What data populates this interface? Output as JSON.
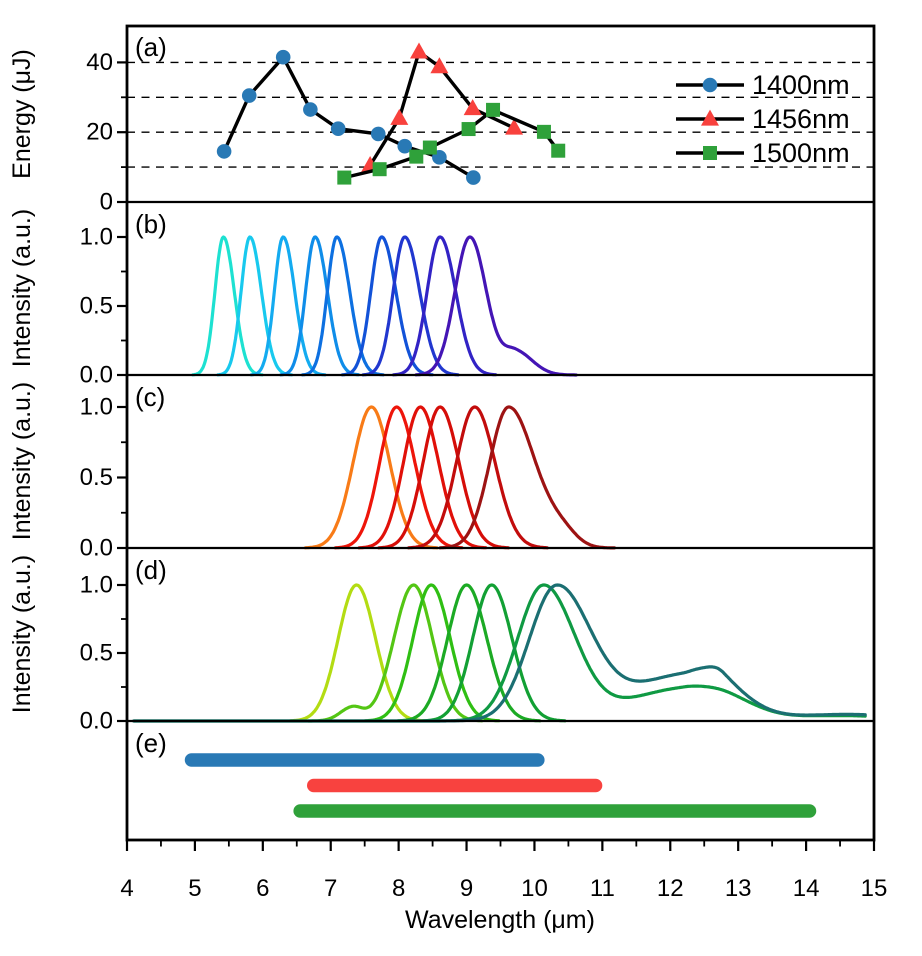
{
  "figure": {
    "xlabel": "Wavelength (μm)",
    "x_ticks": [
      "4",
      "5",
      "6",
      "7",
      "8",
      "9",
      "10",
      "11",
      "12",
      "13",
      "14",
      "15"
    ],
    "x_min": 4,
    "x_max": 15
  },
  "legend": {
    "items": [
      {
        "label": "1400nm",
        "marker": "circle",
        "color": "#2979b5"
      },
      {
        "label": "1456nm",
        "marker": "triangle",
        "color": "#f8413d"
      },
      {
        "label": "1500nm",
        "marker": "square",
        "color": "#2fa13a"
      }
    ]
  },
  "chart_data": [
    {
      "id": "a",
      "panel_label": "(a)",
      "type": "scatter",
      "ylabel": "Energy (μJ)",
      "ylim": [
        0,
        50.4
      ],
      "y_ticks": [
        {
          "v": 0,
          "t": "0"
        },
        {
          "v": 20,
          "t": "20"
        },
        {
          "v": 40,
          "t": "40"
        }
      ],
      "y_minor": [
        10,
        30
      ],
      "gridlines": [
        10,
        20,
        30,
        40
      ],
      "series": [
        {
          "name": "1400nm",
          "marker": "circle",
          "color": "#2979b5",
          "x": [
            5.43,
            5.8,
            6.3,
            6.7,
            7.11,
            7.7,
            8.09,
            8.6,
            9.1
          ],
          "y": [
            14.5,
            30.5,
            41.5,
            26.5,
            21.0,
            19.5,
            16.0,
            12.8,
            7.0
          ]
        },
        {
          "name": "1456nm",
          "marker": "triangle",
          "color": "#f8413d",
          "x": [
            7.58,
            8.01,
            8.3,
            8.6,
            9.09,
            9.7
          ],
          "y": [
            10.5,
            24.0,
            43.0,
            38.8,
            26.8,
            21.2
          ]
        },
        {
          "name": "1500nm",
          "marker": "square",
          "color": "#2fa13a",
          "x": [
            7.2,
            7.72,
            8.26,
            8.46,
            9.03,
            9.39,
            10.14,
            10.35
          ],
          "y": [
            7.0,
            9.4,
            13.0,
            15.6,
            20.9,
            26.4,
            20.1,
            14.7
          ]
        }
      ]
    },
    {
      "id": "b",
      "panel_label": "(b)",
      "type": "curves",
      "ylabel": "Intensity (a.u.)",
      "ylim": [
        0,
        1.25
      ],
      "y_ticks": [
        {
          "v": 0,
          "t": "0.0"
        },
        {
          "v": 0.5,
          "t": "0.5"
        },
        {
          "v": 1,
          "t": "1.0"
        }
      ],
      "y_minor": [
        0.25,
        0.75
      ],
      "curves": [
        {
          "color": "#1de1d1",
          "peak": 5.42,
          "components": [
            {
              "c": 5.42,
              "sl": 0.125,
              "sr": 0.16,
              "a": 1
            }
          ]
        },
        {
          "color": "#18c9ee",
          "peak": 5.81,
          "components": [
            {
              "c": 5.81,
              "sl": 0.13,
              "sr": 0.17,
              "a": 1
            }
          ]
        },
        {
          "color": "#13abf0",
          "peak": 6.3,
          "components": [
            {
              "c": 6.3,
              "sl": 0.13,
              "sr": 0.17,
              "a": 1
            }
          ]
        },
        {
          "color": "#0f8de9",
          "peak": 6.77,
          "components": [
            {
              "c": 6.77,
              "sl": 0.14,
              "sr": 0.18,
              "a": 1
            }
          ]
        },
        {
          "color": "#0d70e1",
          "peak": 7.09,
          "components": [
            {
              "c": 7.09,
              "sl": 0.14,
              "sr": 0.19,
              "a": 1
            }
          ]
        },
        {
          "color": "#1252d8",
          "peak": 7.75,
          "components": [
            {
              "c": 7.75,
              "sl": 0.16,
              "sr": 0.21,
              "a": 1
            }
          ]
        },
        {
          "color": "#2137cf",
          "peak": 8.09,
          "components": [
            {
              "c": 8.09,
              "sl": 0.17,
              "sr": 0.22,
              "a": 1
            }
          ]
        },
        {
          "color": "#3223c5",
          "peak": 8.61,
          "components": [
            {
              "c": 8.61,
              "sl": 0.19,
              "sr": 0.23,
              "a": 1
            }
          ]
        },
        {
          "color": "#4415b5",
          "peak": 9.05,
          "components": [
            {
              "c": 9.05,
              "sl": 0.22,
              "sr": 0.24,
              "a": 1
            },
            {
              "c": 9.72,
              "sl": 0.18,
              "sr": 0.25,
              "a": 0.17
            }
          ]
        }
      ]
    },
    {
      "id": "c",
      "panel_label": "(c)",
      "type": "curves",
      "ylabel": "Intensity (a.u.)",
      "ylim": [
        0,
        1.22
      ],
      "y_ticks": [
        {
          "v": 0,
          "t": "0.0"
        },
        {
          "v": 0.5,
          "t": "0.5"
        },
        {
          "v": 1,
          "t": "1.0"
        }
      ],
      "y_minor": [
        0.25,
        0.75
      ],
      "curves": [
        {
          "color": "#f87b17",
          "peak": 7.6,
          "components": [
            {
              "c": 7.6,
              "sl": 0.27,
              "sr": 0.27,
              "a": 1
            }
          ]
        },
        {
          "color": "#ee150a",
          "peak": 7.97,
          "components": [
            {
              "c": 7.97,
              "sl": 0.25,
              "sr": 0.27,
              "a": 1
            }
          ]
        },
        {
          "color": "#e11009",
          "peak": 8.32,
          "components": [
            {
              "c": 8.32,
              "sl": 0.25,
              "sr": 0.27,
              "a": 1
            }
          ]
        },
        {
          "color": "#d50d08",
          "peak": 8.61,
          "components": [
            {
              "c": 8.61,
              "sl": 0.25,
              "sr": 0.28,
              "a": 1
            }
          ]
        },
        {
          "color": "#c20c0c",
          "peak": 9.12,
          "components": [
            {
              "c": 9.12,
              "sl": 0.27,
              "sr": 0.3,
              "a": 1
            }
          ]
        },
        {
          "color": "#9d1313",
          "peak": 9.62,
          "components": [
            {
              "c": 9.62,
              "sl": 0.28,
              "sr": 0.38,
              "a": 1
            },
            {
              "c": 10.4,
              "sl": 0.25,
              "sr": 0.22,
              "a": 0.1
            }
          ]
        }
      ]
    },
    {
      "id": "d",
      "panel_label": "(d)",
      "type": "curves",
      "ylabel": "Intensity (a.u.)",
      "ylim": [
        0,
        1.27
      ],
      "y_ticks": [
        {
          "v": 0,
          "t": "0.0"
        },
        {
          "v": 0.5,
          "t": "0.5"
        },
        {
          "v": 1,
          "t": "1.0"
        }
      ],
      "y_minor": [
        0.25,
        0.75
      ],
      "curves": [
        {
          "color": "#b3dc13",
          "peak": 7.38,
          "components": [
            {
              "c": 7.38,
              "sl": 0.27,
              "sr": 0.28,
              "a": 1
            }
          ]
        },
        {
          "color": "#54c614",
          "peak": 8.22,
          "components": [
            {
              "c": 8.22,
              "sl": 0.29,
              "sr": 0.28,
              "a": 1
            },
            {
              "c": 7.32,
              "sl": 0.18,
              "sr": 0.15,
              "a": 0.1
            }
          ]
        },
        {
          "color": "#2fbf13",
          "peak": 8.48,
          "components": [
            {
              "c": 8.48,
              "sl": 0.27,
              "sr": 0.28,
              "a": 1
            }
          ]
        },
        {
          "color": "#1caa24",
          "peak": 9.0,
          "components": [
            {
              "c": 9.0,
              "sl": 0.28,
              "sr": 0.3,
              "a": 1
            }
          ]
        },
        {
          "color": "#12a034",
          "peak": 9.37,
          "components": [
            {
              "c": 9.37,
              "sl": 0.28,
              "sr": 0.3,
              "a": 1
            }
          ]
        },
        {
          "color": "#0f9a43",
          "peak": 10.13,
          "range": [
            4.1,
            14.88
          ],
          "components": [
            {
              "c": 10.13,
              "sl": 0.38,
              "sr": 0.46,
              "a": 1
            },
            {
              "c": 12.2,
              "sl": 0.85,
              "sr": 0.55,
              "a": 0.24
            },
            {
              "c": 12.9,
              "sl": 0.35,
              "sr": 0.45,
              "a": 0.09
            },
            {
              "c": 14.5,
              "sl": 0.9,
              "sr": 0.9,
              "a": 0.04
            }
          ]
        },
        {
          "color": "#1b6f72",
          "peak": 10.32,
          "range": [
            4.1,
            14.88
          ],
          "components": [
            {
              "c": 10.32,
              "sl": 0.4,
              "sr": 0.5,
              "a": 1
            },
            {
              "c": 12.3,
              "sl": 0.9,
              "sr": 0.38,
              "a": 0.36
            },
            {
              "c": 12.78,
              "sl": 0.22,
              "sr": 0.45,
              "a": 0.2
            },
            {
              "c": 14.6,
              "sl": 0.9,
              "sr": 0.9,
              "a": 0.05
            }
          ]
        }
      ]
    },
    {
      "id": "e",
      "panel_label": "(e)",
      "type": "bars",
      "bars": [
        {
          "name": "coverage-1400nm",
          "color": "#2979b5",
          "x1": 4.95,
          "x2": 10.05
        },
        {
          "name": "coverage-1456nm",
          "color": "#f8423f",
          "x1": 6.75,
          "x2": 10.9
        },
        {
          "name": "coverage-1500nm",
          "color": "#2fa13a",
          "x1": 6.55,
          "x2": 14.05
        }
      ]
    }
  ]
}
